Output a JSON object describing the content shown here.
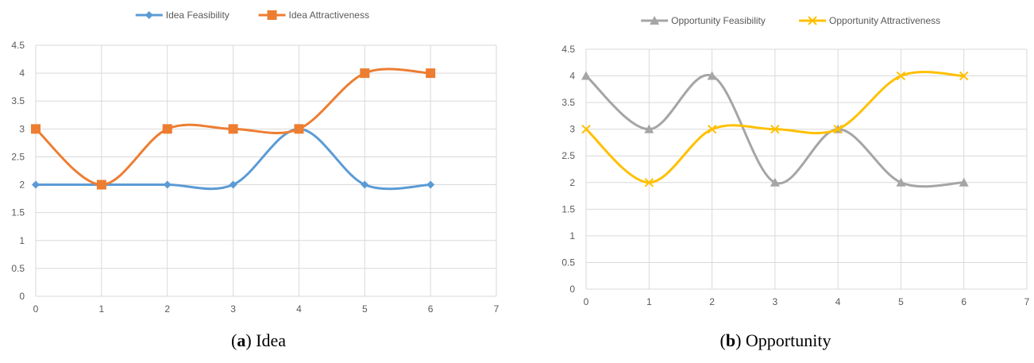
{
  "chart_data": [
    {
      "type": "line",
      "title": "",
      "xlabel": "",
      "ylabel": "",
      "xlim": [
        0,
        7
      ],
      "ylim": [
        0,
        4.5
      ],
      "xticks": [
        0,
        1,
        2,
        3,
        4,
        5,
        6,
        7
      ],
      "yticks": [
        0,
        0.5,
        1,
        1.5,
        2,
        2.5,
        3,
        3.5,
        4,
        4.5
      ],
      "grid": true,
      "legend_position": "top",
      "smooth": true,
      "x": [
        0,
        1,
        2,
        3,
        4,
        5,
        6
      ],
      "series": [
        {
          "name": "Idea Feasibility",
          "values": [
            2,
            2,
            2,
            2,
            3,
            2,
            2
          ],
          "color": "#5B9BD5",
          "marker": "diamond"
        },
        {
          "name": "Idea Attractiveness",
          "values": [
            3,
            2,
            3,
            3,
            3,
            4,
            4
          ],
          "color": "#ED7D31",
          "marker": "square"
        }
      ],
      "caption": {
        "letter": "a",
        "text": "Idea"
      }
    },
    {
      "type": "line",
      "title": "",
      "xlabel": "",
      "ylabel": "",
      "xlim": [
        0,
        7
      ],
      "ylim": [
        0,
        4.5
      ],
      "xticks": [
        0,
        1,
        2,
        3,
        4,
        5,
        6,
        7
      ],
      "yticks": [
        0,
        0.5,
        1,
        1.5,
        2,
        2.5,
        3,
        3.5,
        4,
        4.5
      ],
      "grid": true,
      "legend_position": "top",
      "smooth": true,
      "x": [
        0,
        1,
        2,
        3,
        4,
        5,
        6
      ],
      "series": [
        {
          "name": "Opportunity Feasibility",
          "values": [
            4,
            3,
            4,
            2,
            3,
            2,
            2
          ],
          "color": "#A5A5A5",
          "marker": "triangle"
        },
        {
          "name": "Opportunity Attractiveness",
          "values": [
            3,
            2,
            3,
            3,
            3,
            4,
            4
          ],
          "color": "#FFC000",
          "marker": "x"
        }
      ],
      "caption": {
        "letter": "b",
        "text": "Opportunity"
      }
    }
  ]
}
